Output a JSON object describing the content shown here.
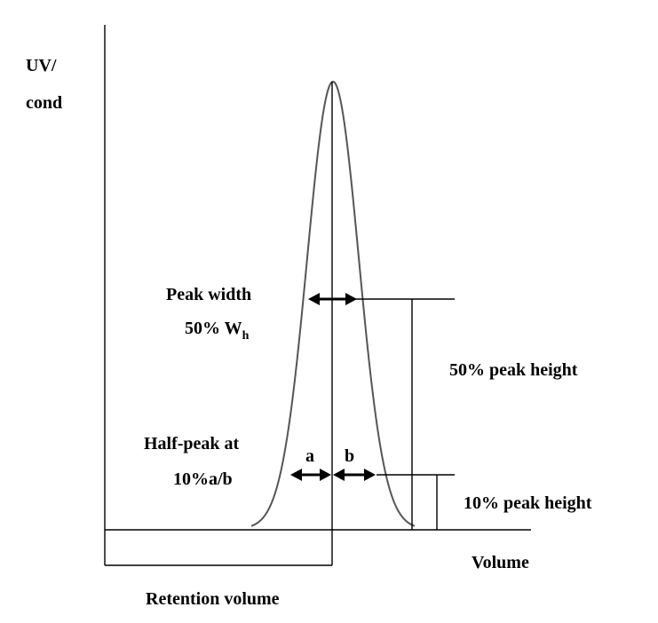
{
  "axis": {
    "y_label_line1": "UV/",
    "y_label_line2": "cond",
    "x_label": "Volume"
  },
  "labels": {
    "peak_width_line1": "Peak width",
    "peak_width_line2": "50% W",
    "peak_width_subscript": "h",
    "half_peak_line1": "Half-peak at",
    "half_peak_line2": "10%a/b",
    "a": "a",
    "b": "b",
    "fifty_peak_height": "50% peak height",
    "ten_peak_height": "10% peak height",
    "retention_volume": "Retention volume"
  }
}
